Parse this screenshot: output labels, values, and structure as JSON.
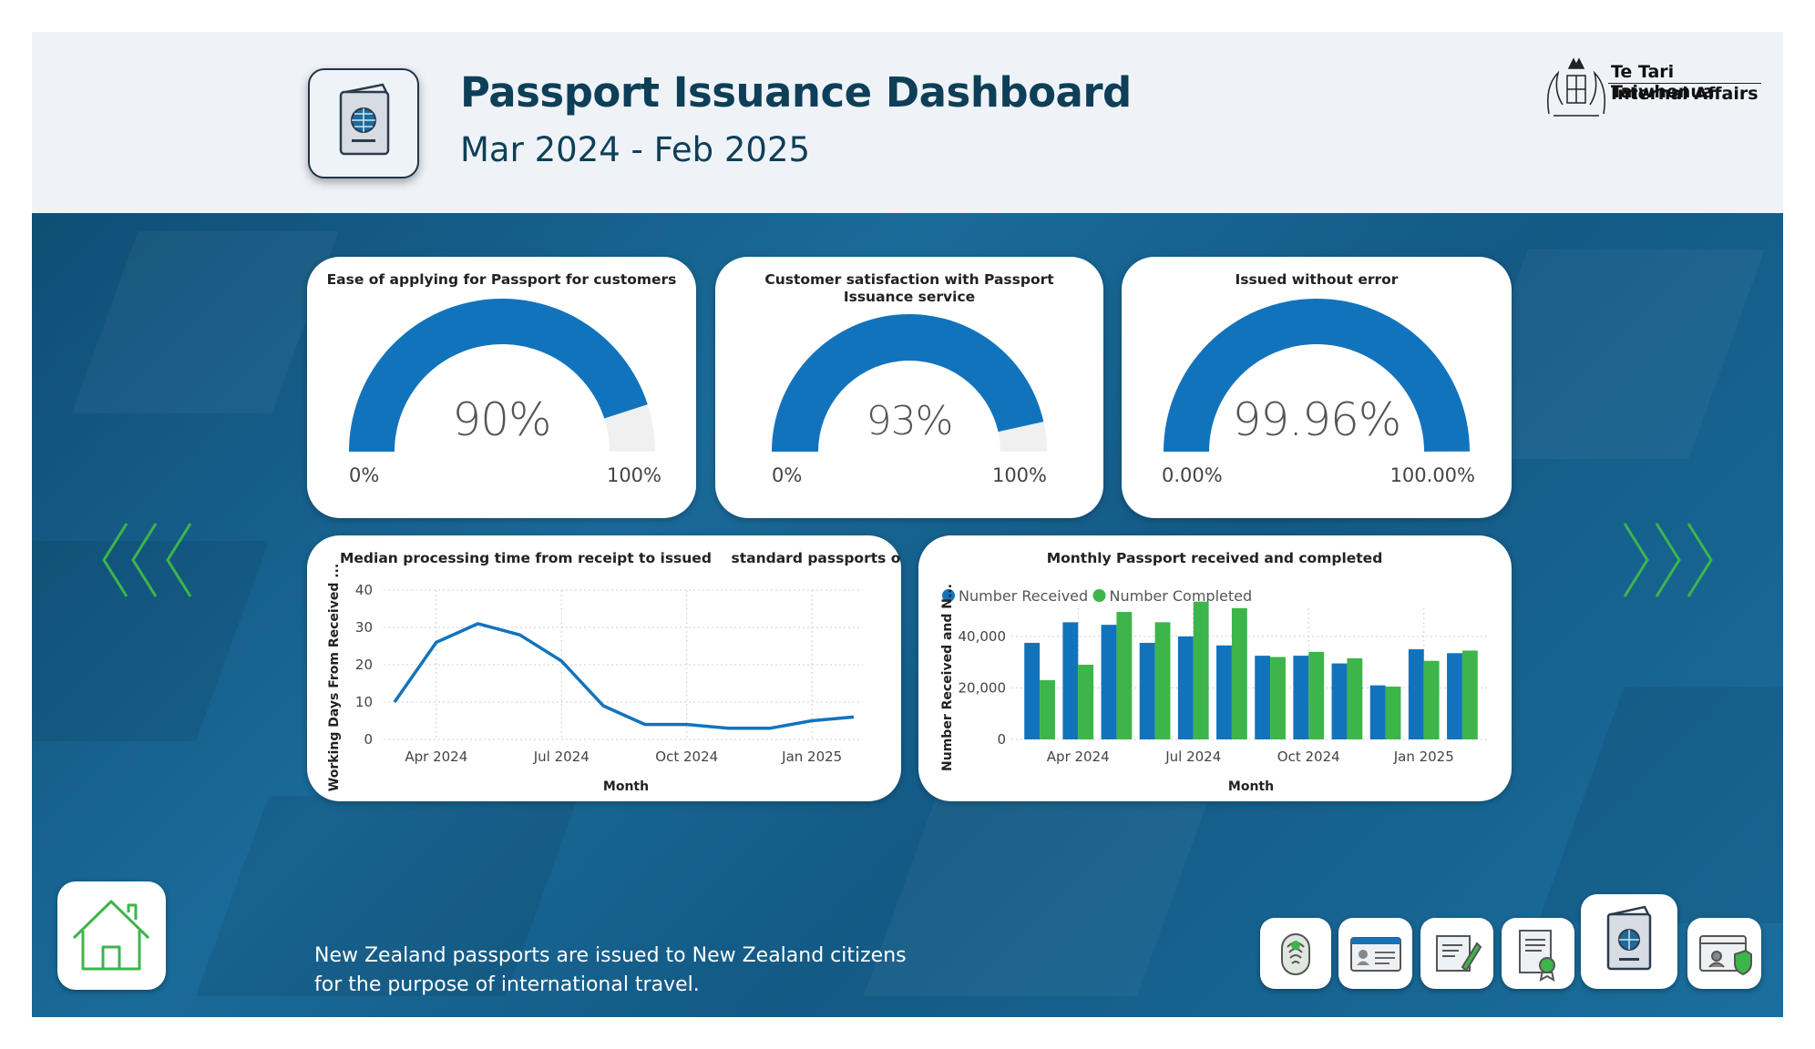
{
  "header": {
    "title": "Passport Issuance Dashboard",
    "subtitle": "Mar 2024 - Feb 2025",
    "org_name_maori": "Te Tari Taiwhenua",
    "org_name_english": "Internal Affairs",
    "page_icon": "passport-icon"
  },
  "gauges": [
    {
      "title": "Ease of applying for Passport for customers",
      "value_label": "90%",
      "value": 0.9,
      "min_label": "0%",
      "max_label": "100%"
    },
    {
      "title": "Customer satisfaction with Passport Issuance service",
      "value_label": "93%",
      "value": 0.93,
      "min_label": "0%",
      "max_label": "100%"
    },
    {
      "title": "Issued without error",
      "value_label": "99.96%",
      "value": 0.9996,
      "min_label": "0.00%",
      "max_label": "100.00%"
    }
  ],
  "colors": {
    "accent": "#1273bd",
    "gauge_track": "#f0f0f0",
    "completed": "#3db54a",
    "header_text": "#0e3f58",
    "arrow": "#3db54a"
  },
  "chart_data": [
    {
      "type": "line",
      "title": "Median processing time from receipt to issued    standard passports only",
      "xlabel": "Month",
      "ylabel": "Working Days From Received ...",
      "x": [
        "2024-03",
        "2024-04",
        "2024-05",
        "2024-06",
        "2024-07",
        "2024-08",
        "2024-09",
        "2024-10",
        "2024-11",
        "2024-12",
        "2025-01",
        "2025-02"
      ],
      "x_ticks": [
        "Apr 2024",
        "Jul 2024",
        "Oct 2024",
        "Jan 2025"
      ],
      "y_ticks": [
        "0",
        "10",
        "20",
        "30",
        "40"
      ],
      "ylim": [
        0,
        40
      ],
      "series": [
        {
          "values": [
            10,
            26,
            31,
            28,
            21,
            9,
            4,
            4,
            3,
            3,
            5,
            6
          ]
        }
      ],
      "grid": true
    },
    {
      "type": "bar",
      "title": "Monthly Passport received and completed",
      "xlabel": "Month",
      "ylabel": "Number Received and N...",
      "categories": [
        "2024-03",
        "2024-04",
        "2024-05",
        "2024-06",
        "2024-07",
        "2024-08",
        "2024-09",
        "2024-10",
        "2024-11",
        "2024-12",
        "2025-01",
        "2025-02"
      ],
      "x_ticks": [
        "Apr 2024",
        "Jul 2024",
        "Oct 2024",
        "Jan 2025"
      ],
      "y_ticks": [
        "0",
        "20,000",
        "40,000"
      ],
      "ylim": [
        0,
        58000
      ],
      "legend": "top-left",
      "series": [
        {
          "name": "Number Received",
          "values": [
            37500,
            45500,
            44500,
            37500,
            40000,
            36500,
            32500,
            32500,
            29500,
            21000,
            35000,
            33500
          ]
        },
        {
          "name": "Number Completed",
          "values": [
            23000,
            29000,
            49500,
            45500,
            53500,
            51000,
            32000,
            34000,
            31500,
            20500,
            30500,
            34500
          ]
        }
      ],
      "grid": true
    }
  ],
  "footer": {
    "description_line1": "New Zealand passports are issued to New Zealand citizens",
    "description_line2": "for the purpose of international travel."
  },
  "nav": {
    "home_icon": "home-icon",
    "items": [
      "fingerprint-icon",
      "id-card-icon",
      "certificate-writing-icon",
      "award-document-icon",
      "passport-icon",
      "secure-id-icon"
    ]
  }
}
